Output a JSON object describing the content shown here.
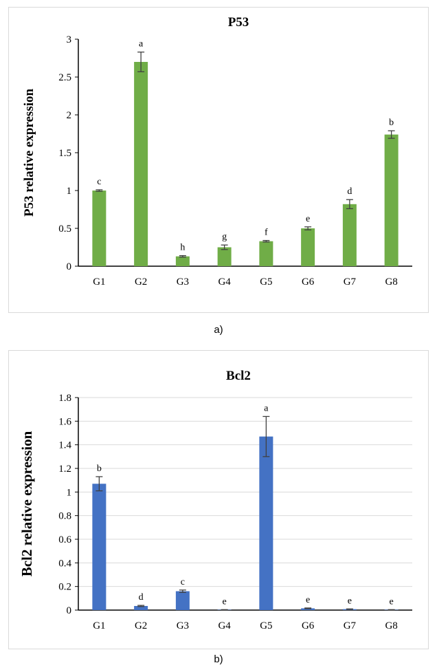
{
  "chart_data": [
    {
      "type": "bar",
      "title": "P53",
      "xlabel": "",
      "ylabel": "P53 relative expression",
      "categories": [
        "G1",
        "G2",
        "G3",
        "G4",
        "G5",
        "G6",
        "G7",
        "G8"
      ],
      "values": [
        1.0,
        2.7,
        0.13,
        0.25,
        0.33,
        0.5,
        0.82,
        1.74
      ],
      "errors": [
        0.01,
        0.13,
        0.01,
        0.03,
        0.01,
        0.02,
        0.06,
        0.05
      ],
      "significance_letters": [
        "c",
        "a",
        "h",
        "g",
        "f",
        "e",
        "d",
        "b"
      ],
      "ylim": [
        0,
        3
      ],
      "yticks": [
        "0",
        "0.5",
        "1",
        "1.5",
        "2",
        "2.5",
        "3"
      ],
      "grid": false,
      "bar_color": "#70ad47",
      "caption": "a)"
    },
    {
      "type": "bar",
      "title": "Bcl2",
      "xlabel": "",
      "ylabel": "Bcl2 relative expression",
      "categories": [
        "G1",
        "G2",
        "G3",
        "G4",
        "G5",
        "G6",
        "G7",
        "G8"
      ],
      "values": [
        1.07,
        0.035,
        0.16,
        0.003,
        1.47,
        0.015,
        0.008,
        0.003
      ],
      "errors": [
        0.06,
        0.005,
        0.01,
        0.001,
        0.17,
        0.003,
        0.002,
        0.001
      ],
      "significance_letters": [
        "b",
        "d",
        "c",
        "e",
        "a",
        "e",
        "e",
        "e"
      ],
      "ylim": [
        0,
        1.8
      ],
      "yticks": [
        "0",
        "0.2",
        "0.4",
        "0.6",
        "0.8",
        "1",
        "1.2",
        "1.4",
        "1.6",
        "1.8"
      ],
      "grid": true,
      "bar_color": "#4472c4",
      "caption": "b)"
    }
  ]
}
